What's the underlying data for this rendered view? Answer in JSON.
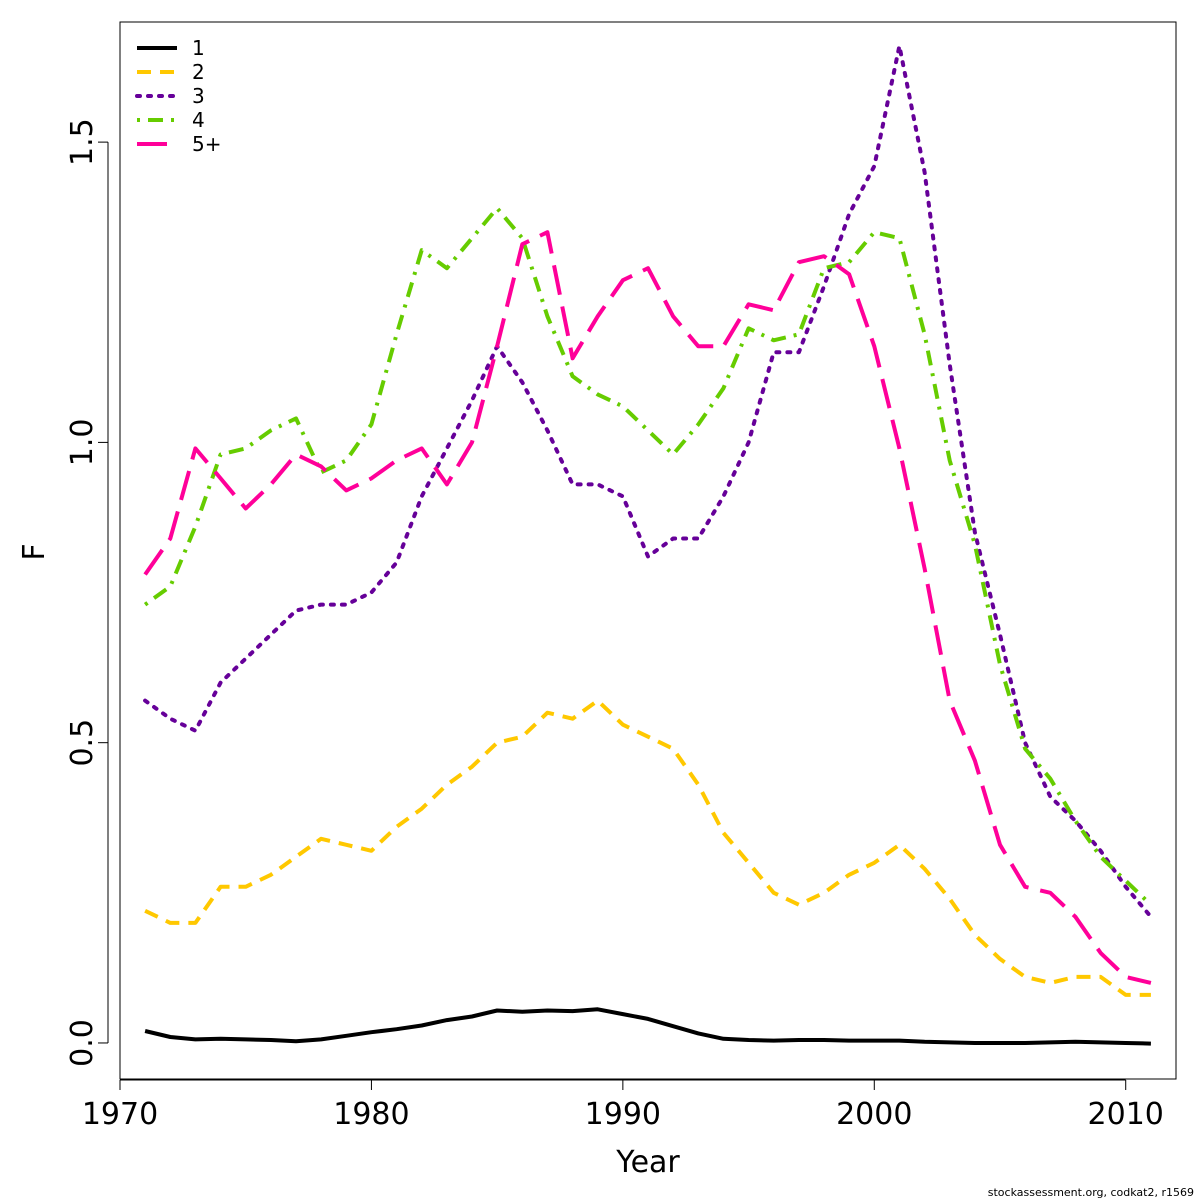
{
  "chart_data": {
    "type": "line",
    "title": "",
    "xlabel": "Year",
    "ylabel": "F",
    "xlim": [
      1970,
      2012
    ],
    "ylim": [
      -0.06,
      1.7
    ],
    "xticks": [
      1970,
      1980,
      1990,
      2000,
      2010
    ],
    "yticks": [
      0.0,
      0.5,
      1.0,
      1.5
    ],
    "xtick_labels": [
      "1970",
      "1980",
      "1990",
      "2000",
      "2010"
    ],
    "ytick_labels": [
      "0.0",
      "0.5",
      "1.0",
      "1.5"
    ],
    "grid": false,
    "legend_position": "top-left",
    "x": [
      1971,
      1972,
      1973,
      1974,
      1975,
      1976,
      1977,
      1978,
      1979,
      1980,
      1981,
      1982,
      1983,
      1984,
      1985,
      1986,
      1987,
      1988,
      1989,
      1990,
      1991,
      1992,
      1993,
      1994,
      1995,
      1996,
      1997,
      1998,
      1999,
      2000,
      2001,
      2002,
      2003,
      2004,
      2005,
      2006,
      2007,
      2008,
      2009,
      2010,
      2011
    ],
    "series": [
      {
        "name": "1",
        "color": "#000000",
        "dash": "solid",
        "values": [
          0.02,
          0.01,
          0.006,
          0.007,
          0.006,
          0.005,
          0.003,
          0.006,
          0.012,
          0.018,
          0.023,
          0.029,
          0.038,
          0.044,
          0.054,
          0.052,
          0.054,
          0.053,
          0.056,
          0.048,
          0.04,
          0.028,
          0.016,
          0.007,
          0.005,
          0.004,
          0.005,
          0.005,
          0.004,
          0.004,
          0.004,
          0.002,
          0.001,
          0.0,
          0.0,
          0.0,
          0.001,
          0.002,
          0.001,
          0.0,
          -0.001
        ]
      },
      {
        "name": "2",
        "color": "#ffc800",
        "dash": "dashed",
        "values": [
          0.22,
          0.2,
          0.2,
          0.26,
          0.26,
          0.28,
          0.31,
          0.34,
          0.33,
          0.32,
          0.36,
          0.39,
          0.43,
          0.46,
          0.5,
          0.51,
          0.55,
          0.54,
          0.57,
          0.53,
          0.51,
          0.49,
          0.43,
          0.35,
          0.3,
          0.25,
          0.23,
          0.25,
          0.28,
          0.3,
          0.33,
          0.29,
          0.24,
          0.18,
          0.14,
          0.11,
          0.1,
          0.11,
          0.11,
          0.08,
          0.08
        ]
      },
      {
        "name": "3",
        "color": "#660099",
        "dash": "dotted",
        "values": [
          0.57,
          0.54,
          0.52,
          0.6,
          0.64,
          0.68,
          0.72,
          0.73,
          0.73,
          0.75,
          0.8,
          0.91,
          0.99,
          1.07,
          1.16,
          1.1,
          1.02,
          0.93,
          0.93,
          0.91,
          0.81,
          0.84,
          0.84,
          0.91,
          1.0,
          1.15,
          1.15,
          1.26,
          1.38,
          1.46,
          1.66,
          1.45,
          1.13,
          0.85,
          0.68,
          0.5,
          0.41,
          0.37,
          0.32,
          0.26,
          0.21
        ]
      },
      {
        "name": "4",
        "color": "#66cc00",
        "dash": "dashdot",
        "values": [
          0.73,
          0.76,
          0.86,
          0.98,
          0.99,
          1.02,
          1.04,
          0.95,
          0.97,
          1.03,
          1.18,
          1.32,
          1.29,
          1.34,
          1.39,
          1.34,
          1.21,
          1.11,
          1.08,
          1.06,
          1.02,
          0.98,
          1.03,
          1.09,
          1.19,
          1.17,
          1.18,
          1.29,
          1.3,
          1.35,
          1.34,
          1.18,
          0.97,
          0.83,
          0.63,
          0.49,
          0.44,
          0.37,
          0.31,
          0.27,
          0.23
        ]
      },
      {
        "name": "5+",
        "color": "#ff0099",
        "dash": "longdash",
        "values": [
          0.78,
          0.84,
          0.99,
          0.94,
          0.89,
          0.93,
          0.98,
          0.96,
          0.92,
          0.94,
          0.97,
          0.99,
          0.93,
          1.0,
          1.16,
          1.33,
          1.35,
          1.14,
          1.21,
          1.27,
          1.29,
          1.21,
          1.16,
          1.16,
          1.23,
          1.22,
          1.3,
          1.31,
          1.28,
          1.16,
          0.99,
          0.79,
          0.57,
          0.47,
          0.33,
          0.26,
          0.25,
          0.21,
          0.15,
          0.11,
          0.1
        ]
      }
    ],
    "credit": "stockassessment.org, codkat2, r1569"
  }
}
